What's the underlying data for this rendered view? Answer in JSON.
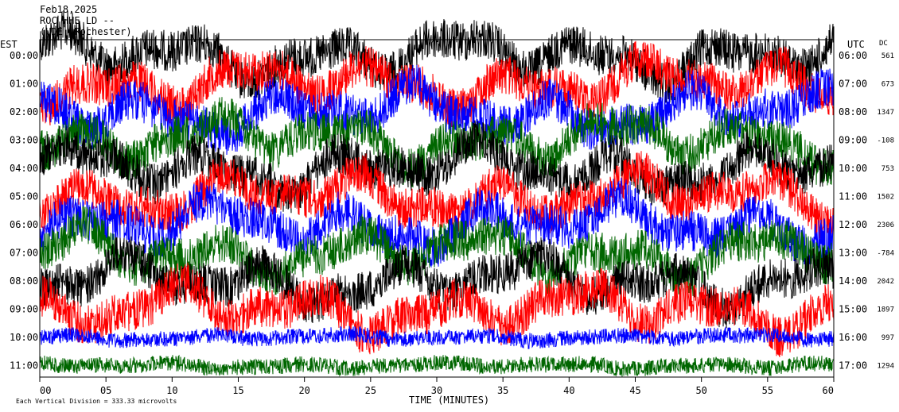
{
  "header": {
    "date": "Feb18,2025",
    "station_line": "ROC HHE LD --",
    "location_line": "(UDE, Rochester)"
  },
  "left_axis_label": "EST",
  "right_axis_label": "UTC",
  "dc_label": "DC",
  "footer": {
    "scale_note": "Each Vertical Division = 333.33 microvolts",
    "x_axis_title": "TIME (MINUTES)"
  },
  "colors": {
    "trace_cycle": [
      "#000000",
      "#ff0000",
      "#0000ff",
      "#006600"
    ],
    "background": "#ffffff",
    "frame": "#000000"
  },
  "chart_data": {
    "type": "line",
    "chart_kind": "helicorder (seismogram drum plot)",
    "x_ticks": [
      "00",
      "05",
      "10",
      "15",
      "20",
      "25",
      "30",
      "35",
      "40",
      "45",
      "50",
      "55",
      "60"
    ],
    "xlim": [
      0,
      60
    ],
    "rows": [
      {
        "est": "00:00",
        "utc": "06:00",
        "dc": "561"
      },
      {
        "est": "01:00",
        "utc": "07:00",
        "dc": "673"
      },
      {
        "est": "02:00",
        "utc": "08:00",
        "dc": "1347"
      },
      {
        "est": "03:00",
        "utc": "09:00",
        "dc": "-108"
      },
      {
        "est": "04:00",
        "utc": "10:00",
        "dc": "753"
      },
      {
        "est": "05:00",
        "utc": "11:00",
        "dc": "1502"
      },
      {
        "est": "06:00",
        "utc": "12:00",
        "dc": "2306"
      },
      {
        "est": "07:00",
        "utc": "13:00",
        "dc": "-784"
      },
      {
        "est": "08:00",
        "utc": "14:00",
        "dc": "2042"
      },
      {
        "est": "09:00",
        "utc": "15:00",
        "dc": "1897"
      },
      {
        "est": "10:00",
        "utc": "16:00",
        "dc": "997"
      },
      {
        "est": "11:00",
        "utc": "17:00",
        "dc": "1294"
      }
    ],
    "grid": false,
    "legend": "none"
  }
}
